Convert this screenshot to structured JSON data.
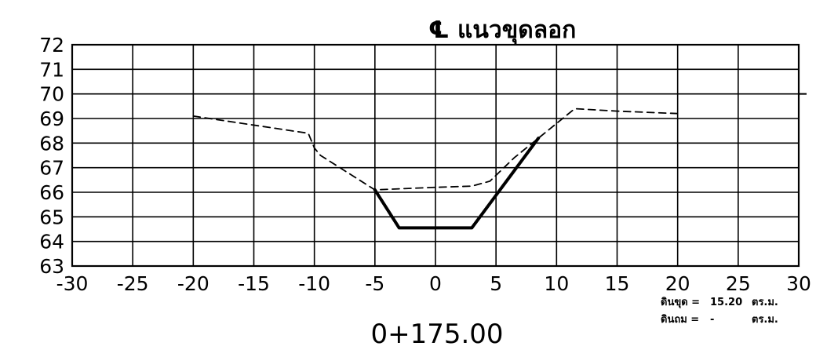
{
  "chart_data": {
    "type": "line",
    "title": "℄ แนวขุดลอก",
    "subtitle": "0+175.00",
    "xlabel": "",
    "ylabel": "",
    "xlim": [
      -30,
      30
    ],
    "ylim": [
      63,
      72
    ],
    "grid": true,
    "xticks": [
      "-30",
      "-25",
      "-20",
      "-15",
      "-10",
      "-5",
      "0",
      "5",
      "10",
      "15",
      "20",
      "25",
      "30"
    ],
    "yticks": [
      "63",
      "64",
      "65",
      "66",
      "67",
      "68",
      "69",
      "70",
      "71",
      "72"
    ],
    "series": [
      {
        "style": "dashed",
        "color": "#000000",
        "x": [
          -20,
          -10.5,
          -10,
          -9.5,
          -5,
          0,
          3,
          4.5,
          6.5,
          8.5,
          11.5,
          15,
          20
        ],
        "y": [
          69.1,
          68.4,
          67.8,
          67.5,
          66.1,
          66.2,
          66.25,
          66.45,
          67.4,
          68.2,
          69.4,
          69.3,
          69.2
        ]
      },
      {
        "style": "solid-bold",
        "color": "#000000",
        "x": [
          -5,
          -3,
          3,
          8.5
        ],
        "y": [
          66.1,
          64.55,
          64.55,
          68.2
        ]
      }
    ],
    "annotations": [
      {
        "label": "ดินขุด =",
        "value": "15.20",
        "unit": "ตร.ม."
      },
      {
        "label": "ดินถม =",
        "value": "-",
        "unit": "ตร.ม."
      }
    ]
  }
}
